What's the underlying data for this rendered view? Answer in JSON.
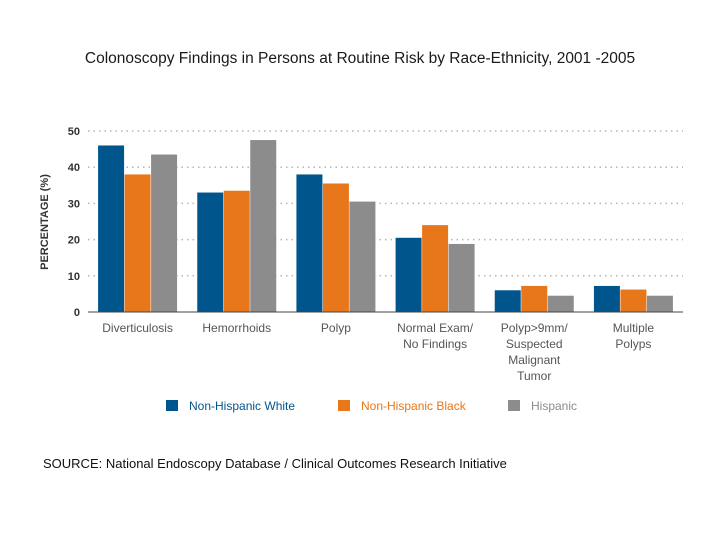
{
  "chart_data": {
    "type": "bar",
    "title": "Colonoscopy Findings in Persons at Routine Risk by Race-Ethnicity, 2001 -2005",
    "xlabel": "",
    "ylabel": "PERCENTAGE (%)",
    "ylim": [
      0,
      50
    ],
    "yticks": [
      0,
      10,
      20,
      30,
      40,
      50
    ],
    "grid": true,
    "legend_position": "bottom",
    "categories": [
      [
        "Diverticulosis"
      ],
      [
        "Hemorrhoids"
      ],
      [
        "Polyp"
      ],
      [
        "Normal Exam/",
        "No Findings"
      ],
      [
        "Polyp>9mm/",
        "Suspected",
        "Malignant",
        "Tumor"
      ],
      [
        "Multiple",
        "Polyps"
      ]
    ],
    "series": [
      {
        "name": "Non-Hispanic White",
        "color": "#00558c",
        "values": [
          46,
          33,
          38,
          20.5,
          6,
          7.2
        ]
      },
      {
        "name": "Non-Hispanic Black",
        "color": "#e8761a",
        "values": [
          38,
          33.5,
          35.5,
          24,
          7.2,
          6.2
        ]
      },
      {
        "name": "Hispanic",
        "color": "#8c8c8c",
        "values": [
          43.5,
          47.5,
          30.5,
          18.8,
          4.5,
          4.5
        ]
      }
    ]
  },
  "source_text": "SOURCE: National Endoscopy Database / Clinical Outcomes Research Initiative"
}
